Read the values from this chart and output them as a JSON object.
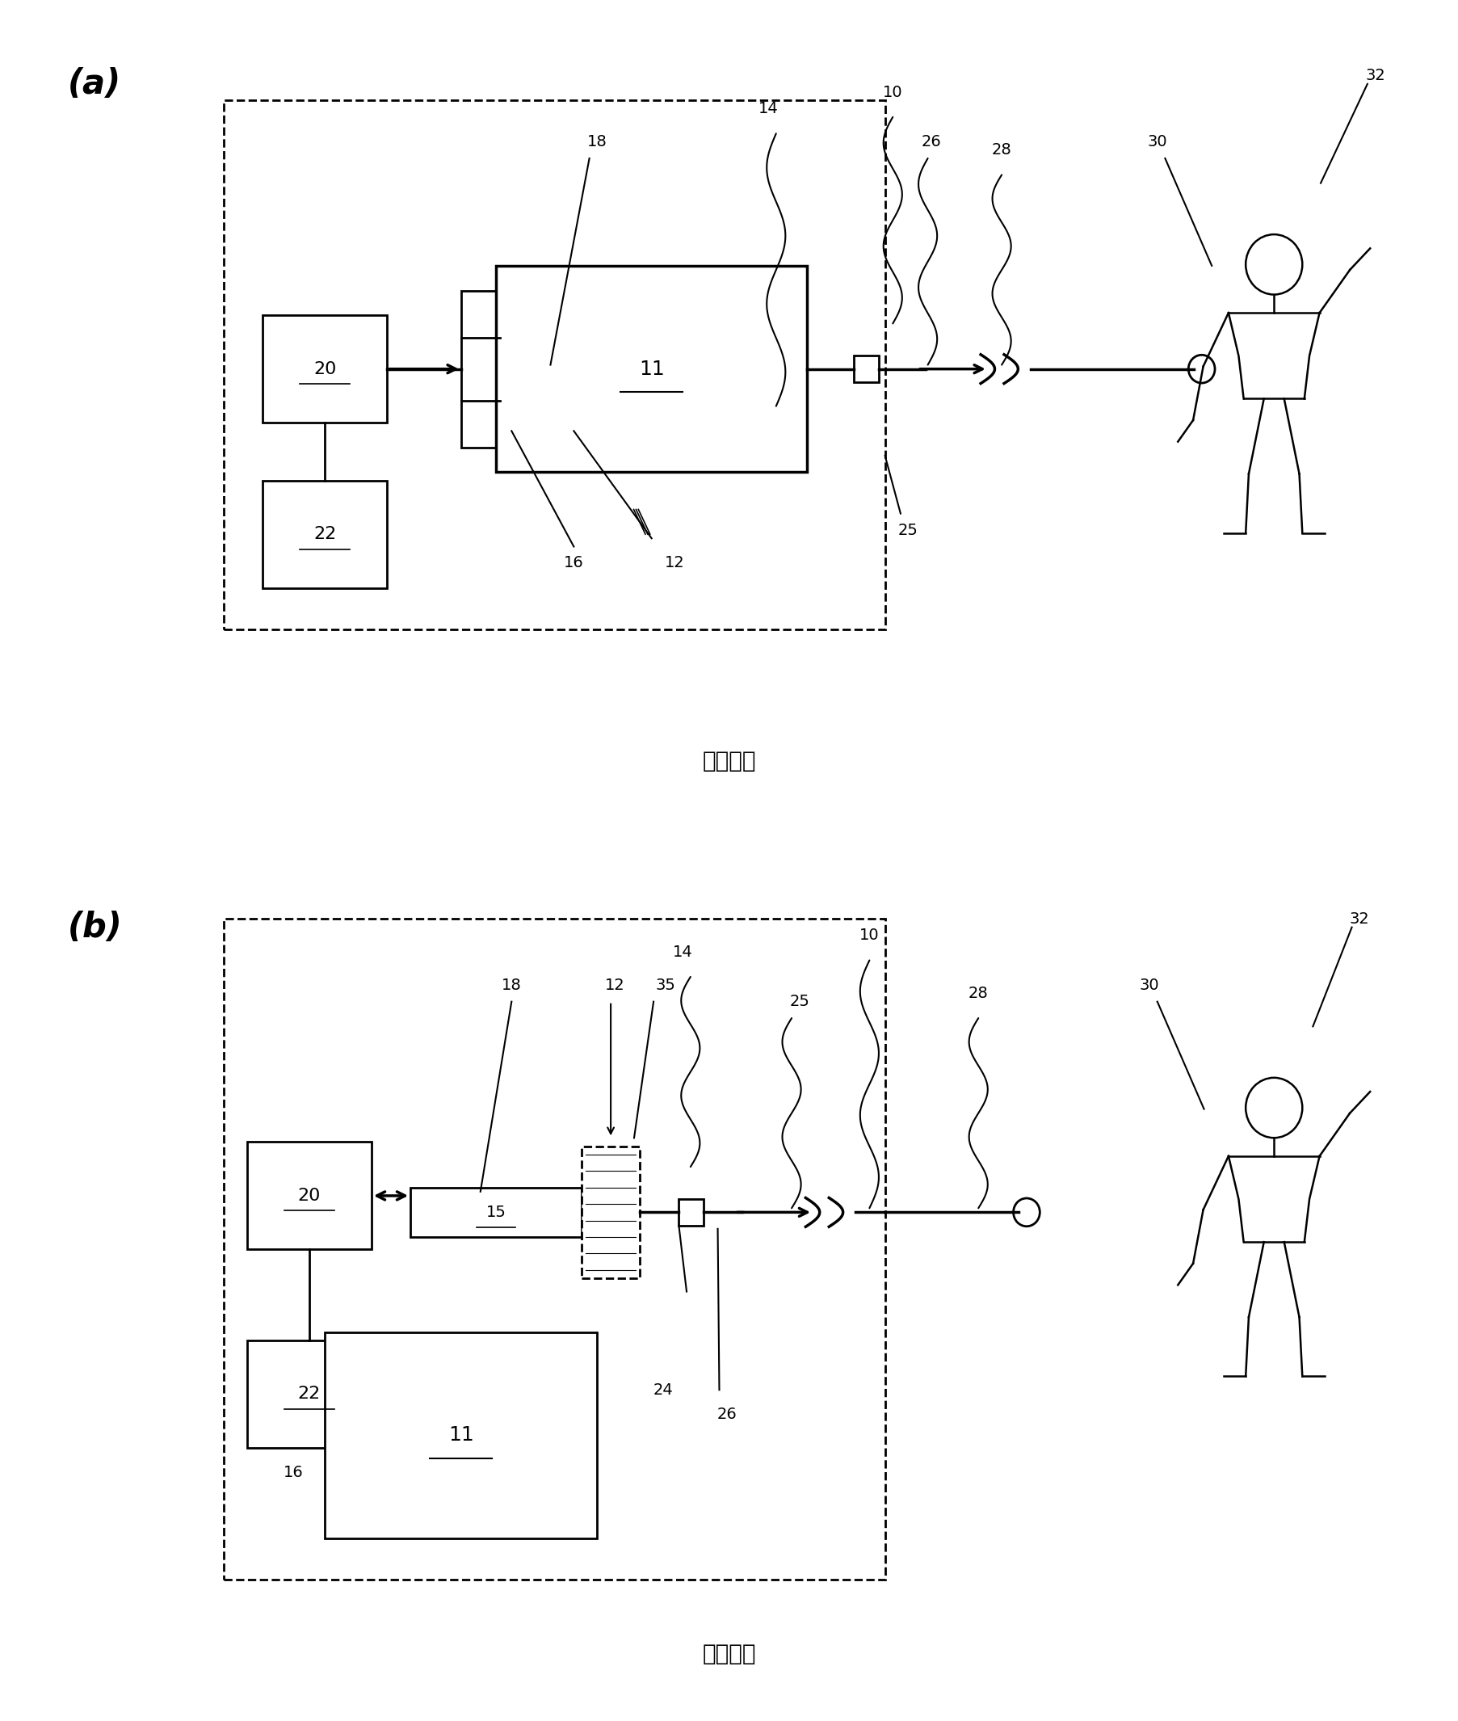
{
  "bg_color": "#ffffff",
  "line_color": "#000000",
  "caption": "现有技术",
  "fig_width": 18.06,
  "fig_height": 21.3
}
